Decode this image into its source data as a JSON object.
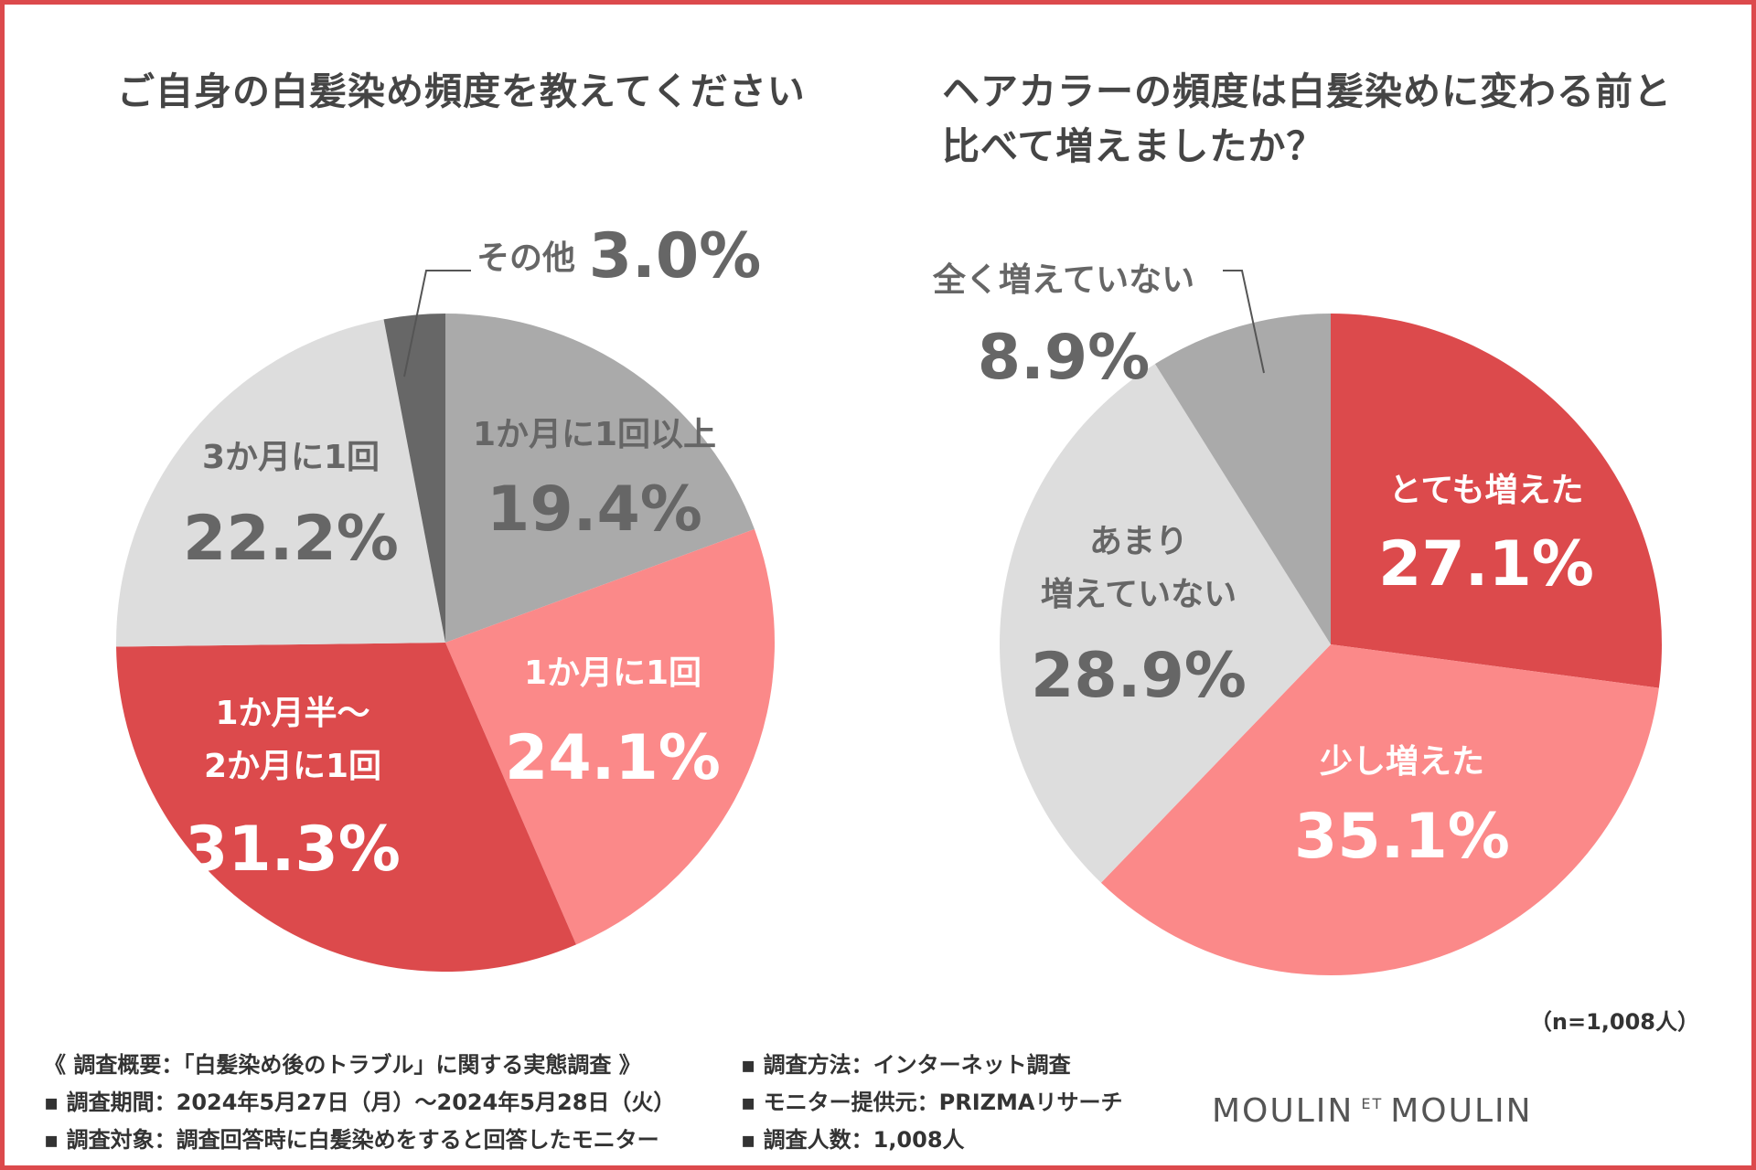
{
  "titles": {
    "left": "ご自身の白髪染め頻度を教えてください",
    "right": "ヘアカラーの頻度は白髪染めに変わる前と比べて増えましたか？"
  },
  "colors": {
    "frame": "#dc4a4c",
    "dark_red": "#dc4a4c",
    "pink": "#fb8989",
    "light_gray": "#dddddd",
    "mid_gray": "#aaaaaa",
    "dark_gray": "#676767"
  },
  "chart_data": [
    {
      "type": "pie",
      "title": "ご自身の白髪染め頻度を教えてください",
      "slices": [
        {
          "label": "1か月に1回以上",
          "value": 19.4,
          "value_text": "19.4%",
          "color": "#aaaaaa"
        },
        {
          "label": "1か月に1回",
          "value": 24.1,
          "value_text": "24.1%",
          "color": "#fb8989"
        },
        {
          "label": "1か月半〜\n2か月に1回",
          "value": 31.3,
          "value_text": "31.3%",
          "color": "#dc4a4c"
        },
        {
          "label": "3か月に1回",
          "value": 22.2,
          "value_text": "22.2%",
          "color": "#dddddd"
        },
        {
          "label": "その他",
          "value": 3.0,
          "value_text": "3.0%",
          "color": "#676767"
        }
      ]
    },
    {
      "type": "pie",
      "title": "ヘアカラーの頻度は白髪染めに変わる前と比べて増えましたか？",
      "slices": [
        {
          "label": "とても増えた",
          "value": 27.1,
          "value_text": "27.1%",
          "color": "#dc4a4c"
        },
        {
          "label": "少し増えた",
          "value": 35.1,
          "value_text": "35.1%",
          "color": "#fb8989"
        },
        {
          "label": "あまり\n増えていない",
          "value": 28.9,
          "value_text": "28.9%",
          "color": "#dddddd"
        },
        {
          "label": "全く増えていない",
          "value": 8.9,
          "value_text": "8.9%",
          "color": "#aaaaaa"
        }
      ]
    }
  ],
  "footer": {
    "sample_size": "（n=1,008人）",
    "notes_left": [
      "《 調査概要：「白髪染め後のトラブル」に関する実態調査 》",
      "▪ 調査期間：2024年5月27日（月）〜2024年5月28日（火）",
      "▪ 調査対象：調査回答時に白髪染めをすると回答したモニター"
    ],
    "notes_right": [
      "▪ 調査方法：インターネット調査",
      "▪ モニター提供元：PRIZMAリサーチ",
      "▪ 調査人数：1,008人"
    ],
    "logo_left": "MOULIN",
    "logo_et": "ET",
    "logo_right": "MOULIN"
  }
}
